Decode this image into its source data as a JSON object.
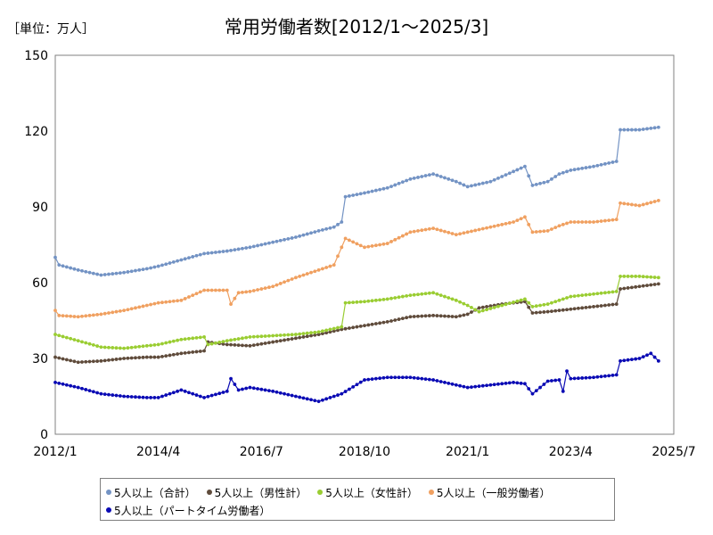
{
  "page": {
    "unit_label": "［単位：万人］",
    "title": "常用労働者数[2012/1～2025/3]"
  },
  "chart_data": {
    "type": "line",
    "title": "常用労働者数[2012/1～2025/3]",
    "unit": "［単位：万人］",
    "xlabel": "",
    "ylabel": "",
    "x_range": [
      "2012/1",
      "2025/7"
    ],
    "x_tick_labels": [
      "2012/1",
      "2014/4",
      "2016/7",
      "2018/10",
      "2021/1",
      "2023/4",
      "2025/7"
    ],
    "ylim": [
      0,
      150
    ],
    "y_ticks": [
      0,
      30,
      60,
      90,
      120,
      150
    ],
    "grid": true,
    "legend_position": "bottom",
    "series": [
      {
        "name": "5人以上（合計）",
        "color": "#7393c4",
        "points": [
          [
            "2012/1",
            70
          ],
          [
            "2012/2",
            67
          ],
          [
            "2012/7",
            65
          ],
          [
            "2013/1",
            63
          ],
          [
            "2013/7",
            64
          ],
          [
            "2014/1",
            65.5
          ],
          [
            "2014/4",
            66.5
          ],
          [
            "2014/10",
            69
          ],
          [
            "2015/4",
            71.5
          ],
          [
            "2015/10",
            72.5
          ],
          [
            "2016/4",
            74
          ],
          [
            "2016/10",
            76
          ],
          [
            "2017/4",
            78
          ],
          [
            "2017/10",
            80.5
          ],
          [
            "2018/2",
            82
          ],
          [
            "2018/4",
            84
          ],
          [
            "2018/5",
            94
          ],
          [
            "2018/10",
            95.5
          ],
          [
            "2019/4",
            97.5
          ],
          [
            "2019/10",
            101
          ],
          [
            "2020/4",
            103
          ],
          [
            "2020/10",
            100
          ],
          [
            "2021/1",
            98
          ],
          [
            "2021/7",
            100
          ],
          [
            "2022/1",
            104
          ],
          [
            "2022/4",
            106
          ],
          [
            "2022/6",
            98.5
          ],
          [
            "2022/10",
            100
          ],
          [
            "2023/1",
            103
          ],
          [
            "2023/4",
            104.5
          ],
          [
            "2023/10",
            106
          ],
          [
            "2024/4",
            108
          ],
          [
            "2024/5",
            120.5
          ],
          [
            "2024/10",
            120.5
          ],
          [
            "2025/3",
            121.5
          ]
        ]
      },
      {
        "name": "5人以上（男性計）",
        "color": "#5f4b3b",
        "points": [
          [
            "2012/1",
            30.5
          ],
          [
            "2012/7",
            28.5
          ],
          [
            "2013/1",
            29
          ],
          [
            "2013/7",
            30
          ],
          [
            "2014/1",
            30.5
          ],
          [
            "2014/4",
            30.5
          ],
          [
            "2014/10",
            32
          ],
          [
            "2015/4",
            33
          ],
          [
            "2015/5",
            36.5
          ],
          [
            "2015/10",
            35.5
          ],
          [
            "2016/4",
            35
          ],
          [
            "2016/10",
            36.5
          ],
          [
            "2017/4",
            38
          ],
          [
            "2017/10",
            39.5
          ],
          [
            "2018/4",
            41.5
          ],
          [
            "2018/10",
            43
          ],
          [
            "2019/4",
            44.5
          ],
          [
            "2019/10",
            46.5
          ],
          [
            "2020/4",
            47
          ],
          [
            "2020/10",
            46.5
          ],
          [
            "2021/1",
            47.5
          ],
          [
            "2021/4",
            50
          ],
          [
            "2021/10",
            51.5
          ],
          [
            "2022/4",
            52.5
          ],
          [
            "2022/6",
            48
          ],
          [
            "2022/10",
            48.5
          ],
          [
            "2023/4",
            49.5
          ],
          [
            "2023/10",
            50.5
          ],
          [
            "2024/4",
            51.5
          ],
          [
            "2024/5",
            57.5
          ],
          [
            "2024/10",
            58.5
          ],
          [
            "2025/3",
            59.5
          ]
        ]
      },
      {
        "name": "5人以上（女性計）",
        "color": "#9acd32",
        "points": [
          [
            "2012/1",
            39.5
          ],
          [
            "2012/7",
            37
          ],
          [
            "2013/1",
            34.5
          ],
          [
            "2013/7",
            34
          ],
          [
            "2014/1",
            35
          ],
          [
            "2014/4",
            35.5
          ],
          [
            "2014/10",
            37.5
          ],
          [
            "2015/4",
            38.5
          ],
          [
            "2015/5",
            35.5
          ],
          [
            "2015/10",
            37
          ],
          [
            "2016/4",
            38.5
          ],
          [
            "2016/10",
            39
          ],
          [
            "2017/4",
            39.5
          ],
          [
            "2017/10",
            40.5
          ],
          [
            "2018/4",
            42.5
          ],
          [
            "2018/5",
            52
          ],
          [
            "2018/10",
            52.5
          ],
          [
            "2019/4",
            53.5
          ],
          [
            "2019/10",
            55
          ],
          [
            "2020/4",
            56
          ],
          [
            "2020/10",
            53
          ],
          [
            "2021/1",
            51
          ],
          [
            "2021/4",
            48.5
          ],
          [
            "2021/10",
            51
          ],
          [
            "2022/4",
            53.5
          ],
          [
            "2022/6",
            50.5
          ],
          [
            "2022/10",
            51.5
          ],
          [
            "2023/4",
            54.5
          ],
          [
            "2023/10",
            55.5
          ],
          [
            "2024/4",
            56.5
          ],
          [
            "2024/5",
            62.5
          ],
          [
            "2024/10",
            62.5
          ],
          [
            "2025/3",
            62
          ]
        ]
      },
      {
        "name": "5人以上（一般労働者）",
        "color": "#f0a060",
        "points": [
          [
            "2012/1",
            49
          ],
          [
            "2012/2",
            47
          ],
          [
            "2012/7",
            46.5
          ],
          [
            "2013/1",
            47.5
          ],
          [
            "2013/7",
            49
          ],
          [
            "2014/1",
            51
          ],
          [
            "2014/4",
            52
          ],
          [
            "2014/10",
            53
          ],
          [
            "2015/4",
            57
          ],
          [
            "2015/10",
            57
          ],
          [
            "2015/11",
            51.5
          ],
          [
            "2016/1",
            56
          ],
          [
            "2016/4",
            56.5
          ],
          [
            "2016/10",
            58.5
          ],
          [
            "2017/4",
            62
          ],
          [
            "2017/10",
            65
          ],
          [
            "2018/2",
            67
          ],
          [
            "2018/5",
            77.5
          ],
          [
            "2018/10",
            74
          ],
          [
            "2019/4",
            75.5
          ],
          [
            "2019/10",
            80
          ],
          [
            "2020/4",
            81.5
          ],
          [
            "2020/10",
            79
          ],
          [
            "2021/1",
            80
          ],
          [
            "2021/7",
            82
          ],
          [
            "2022/1",
            84
          ],
          [
            "2022/4",
            86
          ],
          [
            "2022/6",
            80
          ],
          [
            "2022/10",
            80.5
          ],
          [
            "2023/1",
            82.5
          ],
          [
            "2023/4",
            84
          ],
          [
            "2023/10",
            84
          ],
          [
            "2024/4",
            85
          ],
          [
            "2024/5",
            91.5
          ],
          [
            "2024/10",
            90.5
          ],
          [
            "2025/3",
            92.5
          ]
        ]
      },
      {
        "name": "5人以上（パートタイム労働者）",
        "color": "#0a0ab4",
        "points": [
          [
            "2012/1",
            20.5
          ],
          [
            "2012/7",
            18.5
          ],
          [
            "2013/1",
            16
          ],
          [
            "2013/7",
            15
          ],
          [
            "2014/1",
            14.5
          ],
          [
            "2014/4",
            14.5
          ],
          [
            "2014/10",
            17.5
          ],
          [
            "2015/4",
            14.5
          ],
          [
            "2015/10",
            17
          ],
          [
            "2015/11",
            22
          ],
          [
            "2016/1",
            17.5
          ],
          [
            "2016/4",
            18.5
          ],
          [
            "2016/10",
            17
          ],
          [
            "2017/4",
            15
          ],
          [
            "2017/10",
            13
          ],
          [
            "2018/4",
            16
          ],
          [
            "2018/10",
            21.5
          ],
          [
            "2019/4",
            22.5
          ],
          [
            "2019/10",
            22.5
          ],
          [
            "2020/4",
            21.5
          ],
          [
            "2020/10",
            19.5
          ],
          [
            "2021/1",
            18.5
          ],
          [
            "2021/7",
            19.5
          ],
          [
            "2022/1",
            20.5
          ],
          [
            "2022/4",
            20
          ],
          [
            "2022/6",
            16
          ],
          [
            "2022/10",
            21
          ],
          [
            "2023/1",
            21.5
          ],
          [
            "2023/2",
            17
          ],
          [
            "2023/3",
            25
          ],
          [
            "2023/4",
            22
          ],
          [
            "2023/10",
            22.5
          ],
          [
            "2024/4",
            23.5
          ],
          [
            "2024/5",
            29
          ],
          [
            "2024/10",
            30
          ],
          [
            "2025/1",
            32
          ],
          [
            "2025/3",
            29
          ]
        ]
      }
    ]
  }
}
